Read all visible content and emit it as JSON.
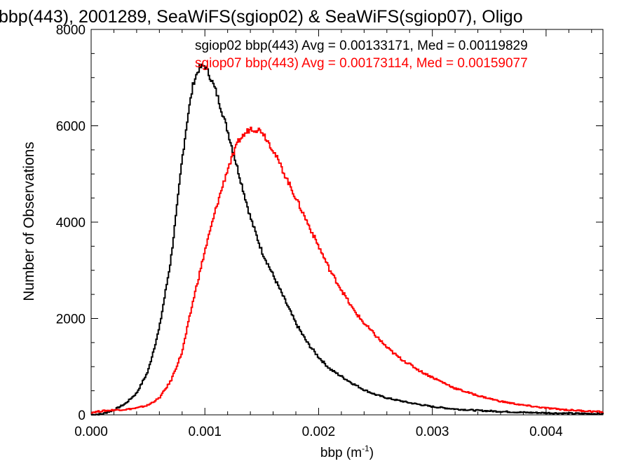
{
  "chart_data": {
    "type": "line",
    "title": "bbp(443), 2001289, SeaWiFS(sgiop02) & SeaWiFS(sgiop07), Oligo",
    "xlabel": "bbp (m",
    "xlabel_sup": "-1",
    "xlabel_end": ")",
    "ylabel": "Number of Observations",
    "xlim": [
      0.0,
      0.0045
    ],
    "ylim": [
      0,
      8000
    ],
    "xticks": [
      "0.000",
      "0.001",
      "0.002",
      "0.003",
      "0.004"
    ],
    "yticks": [
      "0",
      "2000",
      "4000",
      "6000",
      "8000"
    ],
    "legend_placement": "top-right",
    "series": [
      {
        "name": "sgiop02 bbp(443) Avg = 0.00133171, Med = 0.00119829",
        "color": "#000000",
        "x": [
          0.0,
          0.0001,
          0.0002,
          0.0003,
          0.0004,
          0.0005,
          0.0006,
          0.0007,
          0.00075,
          0.0008,
          0.00085,
          0.0009,
          0.00095,
          0.001,
          0.00105,
          0.0011,
          0.0012,
          0.0013,
          0.0014,
          0.0015,
          0.0016,
          0.0017,
          0.0018,
          0.0019,
          0.002,
          0.0021,
          0.0022,
          0.0023,
          0.0024,
          0.0025,
          0.0026,
          0.0028,
          0.003,
          0.0032,
          0.0034,
          0.0036,
          0.0038,
          0.004,
          0.0042,
          0.0045
        ],
        "y": [
          0,
          20,
          100,
          230,
          450,
          900,
          1800,
          3200,
          4200,
          5300,
          6200,
          6900,
          7200,
          7250,
          7000,
          6700,
          5900,
          5000,
          4100,
          3400,
          2900,
          2400,
          1900,
          1500,
          1200,
          950,
          800,
          650,
          520,
          420,
          350,
          250,
          170,
          120,
          90,
          70,
          50,
          40,
          30,
          20
        ]
      },
      {
        "name": "sgiop07 bbp(443) Avg = 0.00173114, Med = 0.00159077",
        "color": "#ff0000",
        "x": [
          0.0,
          0.0001,
          0.0002,
          0.0003,
          0.0004,
          0.0005,
          0.0006,
          0.0007,
          0.0008,
          0.0009,
          0.001,
          0.0011,
          0.0012,
          0.0013,
          0.0014,
          0.0015,
          0.0016,
          0.0017,
          0.0018,
          0.0019,
          0.002,
          0.0021,
          0.0022,
          0.0023,
          0.0024,
          0.0025,
          0.0026,
          0.0027,
          0.0028,
          0.0029,
          0.003,
          0.0032,
          0.0034,
          0.0036,
          0.0038,
          0.004,
          0.0042,
          0.0045
        ],
        "y": [
          50,
          80,
          100,
          110,
          140,
          200,
          350,
          700,
          1300,
          2400,
          3400,
          4300,
          5100,
          5700,
          5950,
          5900,
          5500,
          5000,
          4500,
          4000,
          3500,
          3000,
          2600,
          2200,
          1900,
          1650,
          1400,
          1200,
          1050,
          900,
          780,
          550,
          400,
          280,
          200,
          140,
          100,
          60
        ]
      }
    ]
  }
}
